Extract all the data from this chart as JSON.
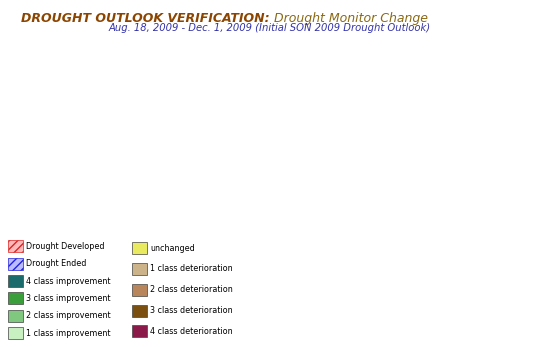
{
  "title_bold": "DROUGHT OUTLOOK VERIFICATION:",
  "title_normal": " Drought Monitor Change",
  "subtitle": "Aug. 18, 2009 - Dec. 1, 2009 (Initial SON 2009 Drought Outlook)",
  "title_bold_color": "#8B4500",
  "title_normal_color": "#8B6914",
  "subtitle_color": "#3333AA",
  "background_color": "#FFFFFF",
  "ocean_color": "#C8E0F0",
  "land_color": "#FFFFFF",
  "river_color": "#6EB5E0",
  "state_edge_color": "#888888",
  "border_color": "#333333",
  "legend_left": [
    {
      "label": "Drought Developed",
      "facecolor": "#FFBBBB",
      "hatch": "////",
      "edgecolor": "#DD2222"
    },
    {
      "label": "Drought Ended",
      "facecolor": "#BBBBFF",
      "hatch": "////",
      "edgecolor": "#2222DD"
    },
    {
      "label": "4 class improvement",
      "facecolor": "#1A6B6B",
      "hatch": null,
      "edgecolor": "#444444"
    },
    {
      "label": "3 class improvement",
      "facecolor": "#3A9E3A",
      "hatch": null,
      "edgecolor": "#444444"
    },
    {
      "label": "2 class improvement",
      "facecolor": "#80C880",
      "hatch": null,
      "edgecolor": "#444444"
    },
    {
      "label": "1 class improvement",
      "facecolor": "#C8F0C0",
      "hatch": null,
      "edgecolor": "#444444"
    }
  ],
  "legend_right": [
    {
      "label": "unchanged",
      "facecolor": "#EAEA60",
      "hatch": null,
      "edgecolor": "#444444"
    },
    {
      "label": "1 class deterioration",
      "facecolor": "#CDB38A",
      "hatch": null,
      "edgecolor": "#444444"
    },
    {
      "label": "2 class deterioration",
      "facecolor": "#B8865A",
      "hatch": null,
      "edgecolor": "#444444"
    },
    {
      "label": "3 class deterioration",
      "facecolor": "#7B4F10",
      "hatch": null,
      "edgecolor": "#444444"
    },
    {
      "label": "4 class deterioration",
      "facecolor": "#8B1A4A",
      "hatch": null,
      "edgecolor": "#444444"
    }
  ],
  "map_extent": [
    -125.5,
    -65.5,
    23.5,
    50.5
  ],
  "proj_central_lon": -96,
  "proj_central_lat": 39,
  "proj_std_parallels": [
    33,
    45
  ]
}
